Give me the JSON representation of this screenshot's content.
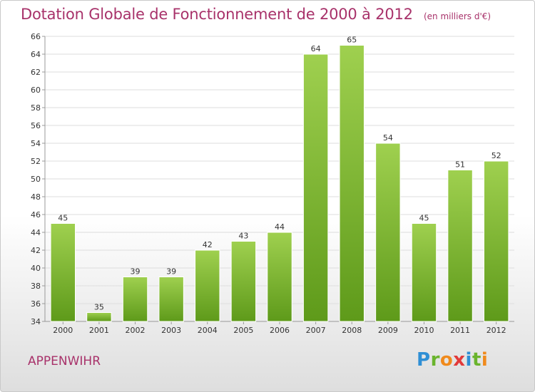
{
  "title": "Dotation Globale de Fonctionnement de 2000 à 2012",
  "subtitle": "(en milliers d'€)",
  "commune": "APPENWIHR",
  "logo_text": "Proxiti",
  "colors": {
    "title": "#a8326a",
    "bar_light": "#9fd04f",
    "bar_dark": "#5e9a1a",
    "grid": "#dddddd"
  },
  "chart_data": {
    "type": "bar",
    "title": "Dotation Globale de Fonctionnement de 2000 à 2012",
    "subtitle": "(en milliers d'€)",
    "categories": [
      "2000",
      "2001",
      "2002",
      "2003",
      "2004",
      "2005",
      "2006",
      "2007",
      "2008",
      "2009",
      "2010",
      "2011",
      "2012"
    ],
    "values": [
      45,
      35,
      39,
      39,
      42,
      43,
      44,
      64,
      65,
      54,
      45,
      51,
      52
    ],
    "ylim": [
      34,
      66
    ],
    "yticks": [
      34,
      36,
      38,
      40,
      42,
      44,
      46,
      48,
      50,
      52,
      54,
      56,
      58,
      60,
      62,
      64,
      66
    ],
    "grid": true
  }
}
